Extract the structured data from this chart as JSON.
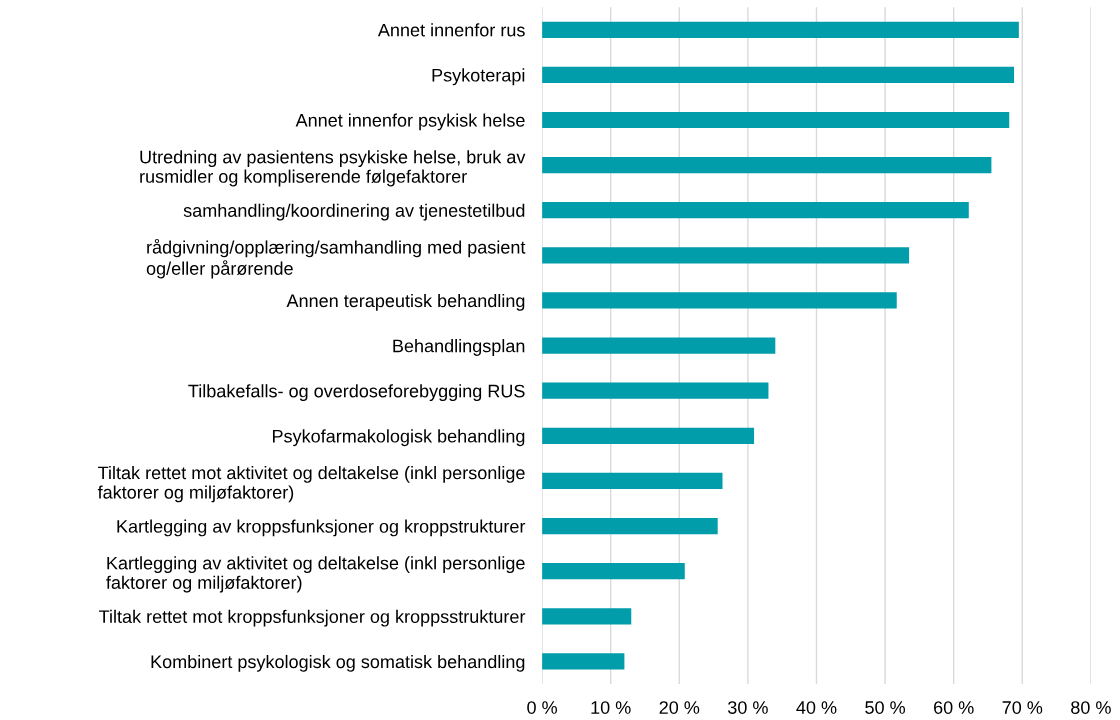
{
  "chart_data": {
    "type": "bar",
    "orientation": "horizontal",
    "categories": [
      "Annet innenfor rus",
      "Psykoterapi",
      "Annet innenfor psykisk helse",
      "Utredning av pasientens psykiske helse, bruk av\nrusmidler og kompliserende følgefaktorer",
      "samhandling/koordinering av tjenestetilbud",
      "rådgivning/opplæring/samhandling med pasient\nog/eller pårørende",
      "Annen terapeutisk behandling",
      "Behandlingsplan",
      "Tilbakefalls- og overdoseforebygging RUS",
      "Psykofarmakologisk behandling",
      "Tiltak rettet mot aktivitet og deltakelse (inkl personlige\nfaktorer og miljøfaktorer)",
      "Kartlegging av kroppsfunksjoner og kroppstrukturer",
      "Kartlegging av aktivitet og deltakelse (inkl personlige\nfaktorer og miljøfaktorer)",
      "Tiltak rettet mot kroppsfunksjoner og kroppsstrukturer",
      "Kombinert psykologisk og somatisk behandling"
    ],
    "values": [
      69.5,
      68.8,
      68.1,
      65.5,
      62.2,
      53.5,
      51.7,
      34.0,
      33.0,
      30.9,
      26.3,
      25.6,
      20.8,
      13.0,
      12.0
    ],
    "color": "#019dab",
    "xlim": [
      0,
      80
    ],
    "xticks": [
      {
        "value": 0,
        "label": "0 %"
      },
      {
        "value": 10,
        "label": "10 %"
      },
      {
        "value": 20,
        "label": "20 %"
      },
      {
        "value": 30,
        "label": "30 %"
      },
      {
        "value": 40,
        "label": "40 %"
      },
      {
        "value": 50,
        "label": "50 %"
      },
      {
        "value": 60,
        "label": "60 %"
      },
      {
        "value": 70,
        "label": "70 %"
      },
      {
        "value": 80,
        "label": "80 %"
      }
    ],
    "grid": "x"
  }
}
